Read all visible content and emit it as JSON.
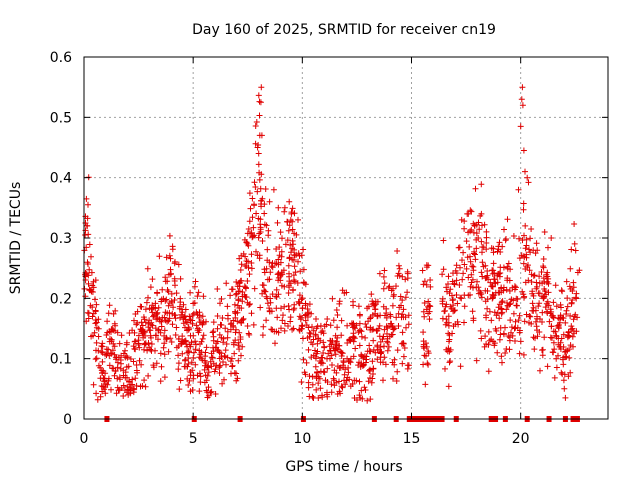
{
  "chart_data": {
    "type": "scatter",
    "title": "Day 160 of 2025, SRMTID for receiver cn19",
    "xlabel": "GPS time / hours",
    "ylabel": "SRMTID / TECUs",
    "xlim": [
      0,
      24
    ],
    "ylim": [
      0,
      0.6
    ],
    "xticks": [
      0,
      5,
      10,
      15,
      20
    ],
    "xtick_labels": [
      "0",
      "5",
      "10",
      "15",
      "20"
    ],
    "yticks": [
      0,
      0.1,
      0.2,
      0.3,
      0.4,
      0.5,
      0.6
    ],
    "ytick_labels": [
      "0",
      "0.1",
      "0.2",
      "0.3",
      "0.4",
      "0.5",
      "0.6"
    ],
    "grid": true,
    "marker": "+",
    "color": "#e00000",
    "trend": [
      [
        0.0,
        0.29
      ],
      [
        0.1,
        0.28
      ],
      [
        0.2,
        0.27
      ],
      [
        0.3,
        0.21
      ],
      [
        0.45,
        0.17
      ],
      [
        0.6,
        0.12
      ],
      [
        0.8,
        0.1
      ],
      [
        1.0,
        0.07
      ],
      [
        1.2,
        0.13
      ],
      [
        1.4,
        0.11
      ],
      [
        1.6,
        0.08
      ],
      [
        1.8,
        0.07
      ],
      [
        2.0,
        0.07
      ],
      [
        2.3,
        0.1
      ],
      [
        2.6,
        0.14
      ],
      [
        2.9,
        0.15
      ],
      [
        3.2,
        0.16
      ],
      [
        3.5,
        0.16
      ],
      [
        3.8,
        0.15
      ],
      [
        4.0,
        0.22
      ],
      [
        4.3,
        0.16
      ],
      [
        4.6,
        0.14
      ],
      [
        4.9,
        0.12
      ],
      [
        5.2,
        0.16
      ],
      [
        5.5,
        0.1
      ],
      [
        5.8,
        0.08
      ],
      [
        6.1,
        0.12
      ],
      [
        6.4,
        0.13
      ],
      [
        6.8,
        0.13
      ],
      [
        7.2,
        0.2
      ],
      [
        7.5,
        0.26
      ],
      [
        7.8,
        0.3
      ],
      [
        8.0,
        0.38
      ],
      [
        8.2,
        0.28
      ],
      [
        8.5,
        0.22
      ],
      [
        8.8,
        0.23
      ],
      [
        9.1,
        0.24
      ],
      [
        9.4,
        0.26
      ],
      [
        9.7,
        0.24
      ],
      [
        10.0,
        0.17
      ],
      [
        10.3,
        0.14
      ],
      [
        10.6,
        0.1
      ],
      [
        10.9,
        0.09
      ],
      [
        11.2,
        0.1
      ],
      [
        11.6,
        0.11
      ],
      [
        12.0,
        0.11
      ],
      [
        12.4,
        0.12
      ],
      [
        12.8,
        0.1
      ],
      [
        13.2,
        0.13
      ],
      [
        13.6,
        0.15
      ],
      [
        14.0,
        0.16
      ],
      [
        14.4,
        0.18
      ],
      [
        14.8,
        0.17
      ],
      [
        16.5,
        0.16
      ],
      [
        16.8,
        0.17
      ],
      [
        17.1,
        0.22
      ],
      [
        17.4,
        0.24
      ],
      [
        17.7,
        0.28
      ],
      [
        18.0,
        0.25
      ],
      [
        18.3,
        0.24
      ],
      [
        18.6,
        0.21
      ],
      [
        18.9,
        0.2
      ],
      [
        19.2,
        0.22
      ],
      [
        19.5,
        0.19
      ],
      [
        19.8,
        0.17
      ],
      [
        20.1,
        0.25
      ],
      [
        20.3,
        0.28
      ],
      [
        20.6,
        0.2
      ],
      [
        20.9,
        0.18
      ],
      [
        21.2,
        0.2
      ],
      [
        21.5,
        0.15
      ],
      [
        21.8,
        0.14
      ],
      [
        22.1,
        0.14
      ],
      [
        22.4,
        0.18
      ],
      [
        22.7,
        0.23
      ]
    ],
    "spikes": [
      [
        7.95,
        0.45
      ],
      [
        8.0,
        0.44
      ],
      [
        8.05,
        0.47
      ],
      [
        8.1,
        0.525
      ],
      [
        8.12,
        0.55
      ],
      [
        8.15,
        0.47
      ],
      [
        8.5,
        0.36
      ],
      [
        8.7,
        0.38
      ],
      [
        8.9,
        0.35
      ],
      [
        9.2,
        0.35
      ],
      [
        9.4,
        0.36
      ],
      [
        9.5,
        0.34
      ],
      [
        9.8,
        0.33
      ],
      [
        0.05,
        0.305
      ],
      [
        0.15,
        0.32
      ],
      [
        17.3,
        0.33
      ],
      [
        17.6,
        0.34
      ],
      [
        17.9,
        0.32
      ],
      [
        18.2,
        0.34
      ],
      [
        19.9,
        0.38
      ],
      [
        20.0,
        0.485
      ],
      [
        20.05,
        0.53
      ],
      [
        20.08,
        0.55
      ],
      [
        20.1,
        0.52
      ],
      [
        20.15,
        0.445
      ],
      [
        20.2,
        0.41
      ],
      [
        20.3,
        0.4
      ],
      [
        21.1,
        0.31
      ],
      [
        21.4,
        0.3
      ],
      [
        22.0,
        0.05
      ],
      [
        22.05,
        0.035
      ],
      [
        15.7,
        0.255
      ],
      [
        16.4,
        0.24
      ],
      [
        16.6,
        0.19
      ]
    ],
    "zero_values_x": [
      1.05,
      5.05,
      7.15,
      10.05,
      13.3,
      14.3,
      14.9,
      15.1,
      15.3,
      15.45,
      15.6,
      15.75,
      15.9,
      16.05,
      16.2,
      16.4,
      17.05,
      18.65,
      18.85,
      19.3,
      20.3,
      21.3,
      22.05,
      22.4,
      22.6
    ],
    "gaps": [
      [
        14.9,
        15.5
      ],
      [
        15.9,
        16.4
      ]
    ]
  }
}
